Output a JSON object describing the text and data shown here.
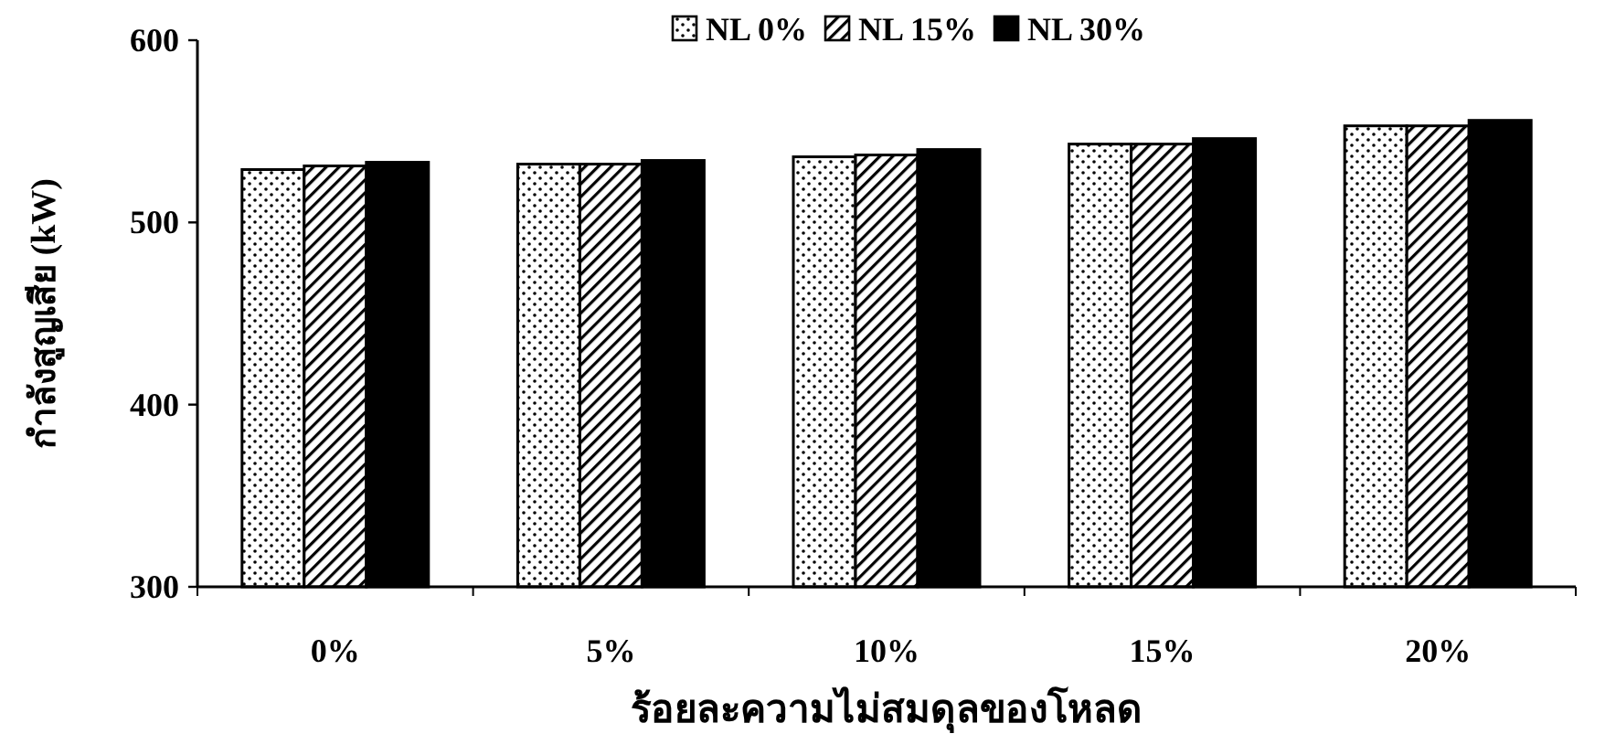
{
  "chart_data": {
    "type": "bar",
    "xlabel": "ร้อยละความไม่สมดุลของโหลด",
    "ylabel": "กำลังสูญเสีย (kW)",
    "categories": [
      "0%",
      "5%",
      "10%",
      "15%",
      "20%"
    ],
    "series": [
      {
        "name": "NL 0%",
        "color": "#000000",
        "values": [
          529,
          532,
          536,
          543,
          553
        ]
      },
      {
        "name": "NL 15%",
        "color": "#000000",
        "values": [
          531,
          532,
          537,
          543,
          553
        ]
      },
      {
        "name": "NL 30%",
        "color": "#000000",
        "values": [
          533,
          534,
          540,
          546,
          556
        ]
      }
    ],
    "ylim": [
      300,
      600
    ],
    "yticks": [
      300,
      400,
      500,
      600
    ],
    "grid": false,
    "legend": "top"
  }
}
